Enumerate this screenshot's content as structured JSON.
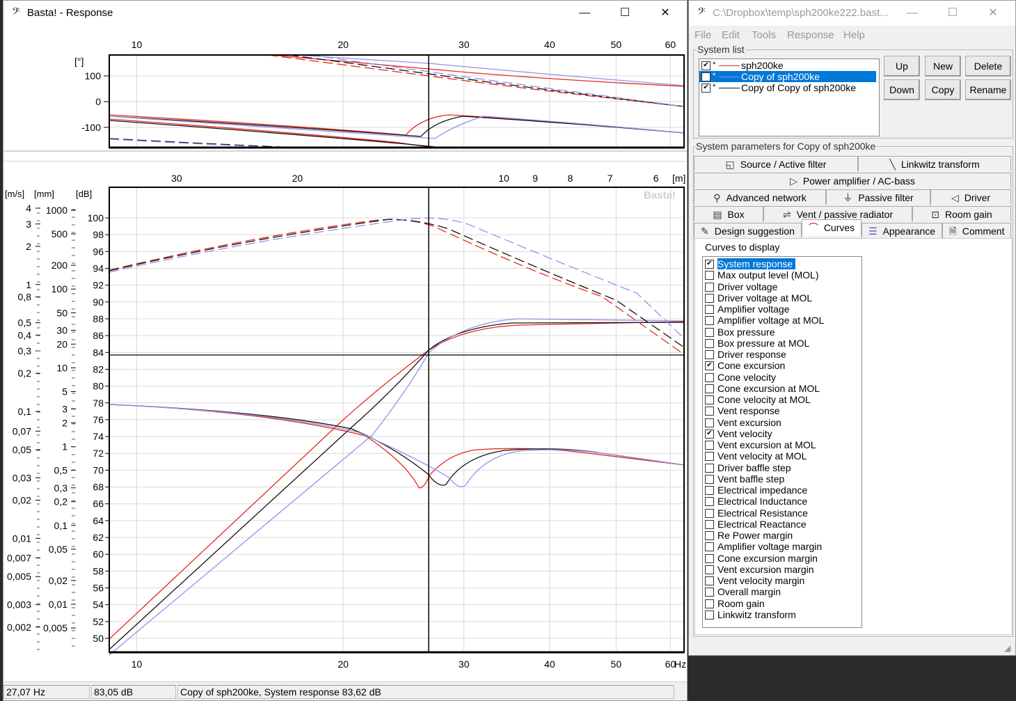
{
  "response_window": {
    "title": "Basta! - Response",
    "minimize": "—",
    "maximize": "☐",
    "close": "✕",
    "phase_axis": {
      "unit": "[°]",
      "ticks": [
        "100",
        "0",
        "-100"
      ]
    },
    "freq_ticks": [
      "10",
      "20",
      "30",
      "40",
      "50",
      "60"
    ],
    "hz_label": "Hz",
    "wavelength_ticks": [
      "30",
      "20",
      "10",
      "9",
      "8",
      "7",
      "6"
    ],
    "wavelength_unit": "[m]",
    "axis_units": {
      "velocity": "[m/s]",
      "excursion": "[mm]",
      "db": "[dB]"
    },
    "db_ticks": [
      "100",
      "98",
      "96",
      "94",
      "92",
      "90",
      "88",
      "86",
      "84",
      "82",
      "80",
      "78",
      "76",
      "74",
      "72",
      "70",
      "68",
      "66",
      "64",
      "62",
      "60",
      "58",
      "56",
      "54",
      "52",
      "50"
    ],
    "velocity_ticks": [
      "4",
      "3",
      "2",
      "1",
      "0,8",
      "0,5",
      "0,4",
      "0,3",
      "0,2",
      "0,1",
      "0,07",
      "0,05",
      "0,03",
      "0,02",
      "0,01",
      "0,007",
      "0,005",
      "0,003",
      "0,002"
    ],
    "excursion_ticks": [
      "1000",
      "500",
      "200",
      "100",
      "50",
      "30",
      "20",
      "10",
      "5",
      "3",
      "2",
      "1",
      "0,5",
      "0,3",
      "0,2",
      "0,1",
      "0,05",
      "0,02",
      "0,01",
      "0,005"
    ],
    "watermark": "Basta!",
    "status": {
      "frequency": "27,07 Hz",
      "level": "83,05 dB",
      "info": "Copy of sph200ke, System response 83,62 dB"
    }
  },
  "main_window": {
    "title": "C:\\Dropbox\\temp\\sph200ke222.bast...",
    "menus": [
      "File",
      "Edit",
      "Tools",
      "Response",
      "Help"
    ],
    "system_list_title": "System list",
    "systems": [
      {
        "name": "sph200ke",
        "color": "#e8261e",
        "checked": true,
        "selected": false
      },
      {
        "name": "Copy of sph200ke",
        "color": "#8f92ee",
        "checked": true,
        "selected": true
      },
      {
        "name": "Copy of Copy of sph200ke",
        "color": "#111111",
        "checked": true,
        "selected": false
      }
    ],
    "buttons": {
      "up": "Up",
      "new": "New",
      "delete": "Delete",
      "down": "Down",
      "copy": "Copy",
      "rename": "Rename"
    },
    "params_title": "System parameters for Copy of sph200ke",
    "tabs": {
      "source": "Source / Active filter",
      "linkwitz": "Linkwitz transform",
      "power_amp": "Power amplifier / AC-bass",
      "advanced": "Advanced network",
      "passive": "Passive filter",
      "driver": "Driver",
      "box": "Box",
      "vent": "Vent / passive radiator",
      "room": "Room gain",
      "design": "Design suggestion",
      "curves": "Curves",
      "appearance": "Appearance",
      "comment": "Comment"
    },
    "curves_title": "Curves to display",
    "curves": [
      {
        "label": "System response",
        "checked": true,
        "selected": true
      },
      {
        "label": "Max output level (MOL)",
        "checked": false
      },
      {
        "label": "Driver voltage",
        "checked": false
      },
      {
        "label": "Driver voltage at MOL",
        "checked": false
      },
      {
        "label": "Amplifier voltage",
        "checked": false
      },
      {
        "label": "Amplifier voltage at MOL",
        "checked": false
      },
      {
        "label": "Box pressure",
        "checked": false
      },
      {
        "label": "Box pressure at MOL",
        "checked": false
      },
      {
        "label": "Driver response",
        "checked": false
      },
      {
        "label": "Cone excursion",
        "checked": true
      },
      {
        "label": "Cone velocity",
        "checked": false
      },
      {
        "label": "Cone excursion at MOL",
        "checked": false
      },
      {
        "label": "Cone velocity at MOL",
        "checked": false
      },
      {
        "label": "Vent response",
        "checked": false
      },
      {
        "label": "Vent excursion",
        "checked": false
      },
      {
        "label": "Vent velocity",
        "checked": true
      },
      {
        "label": "Vent excursion at MOL",
        "checked": false
      },
      {
        "label": "Vent velocity at MOL",
        "checked": false
      },
      {
        "label": "Driver baffle step",
        "checked": false
      },
      {
        "label": "Vent baffle step",
        "checked": false
      },
      {
        "label": "Electrical impedance",
        "checked": false
      },
      {
        "label": "Electrical Inductance",
        "checked": false
      },
      {
        "label": "Electrical Resistance",
        "checked": false
      },
      {
        "label": "Electrical Reactance",
        "checked": false
      },
      {
        "label": "Re Power margin",
        "checked": false
      },
      {
        "label": "Amplifier voltage margin",
        "checked": false
      },
      {
        "label": "Cone excursion margin",
        "checked": false
      },
      {
        "label": "Vent excursion margin",
        "checked": false
      },
      {
        "label": "Vent velocity margin",
        "checked": false
      },
      {
        "label": "Overall margin",
        "checked": false
      },
      {
        "label": "Room gain",
        "checked": false
      },
      {
        "label": "Linkwitz transform",
        "checked": false
      }
    ]
  }
}
